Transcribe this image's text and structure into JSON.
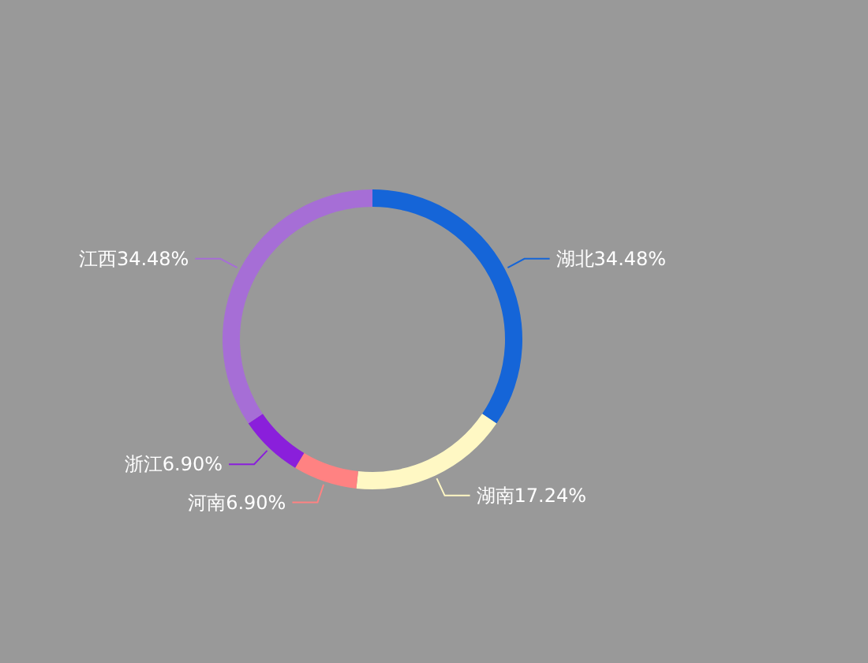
{
  "chart_data": {
    "type": "donut",
    "categories": [
      "湖北",
      "湖南",
      "河南",
      "浙江",
      "江西"
    ],
    "values": [
      34.48,
      17.24,
      6.9,
      6.9,
      34.48
    ],
    "value_labels": [
      "34.48%",
      "17.24%",
      "6.90%",
      "6.90%",
      "34.48%"
    ],
    "colors": [
      "#1565d8",
      "#fff8c4",
      "#ff8282",
      "#8a1fdb",
      "#a66ed6"
    ],
    "legend": false
  }
}
